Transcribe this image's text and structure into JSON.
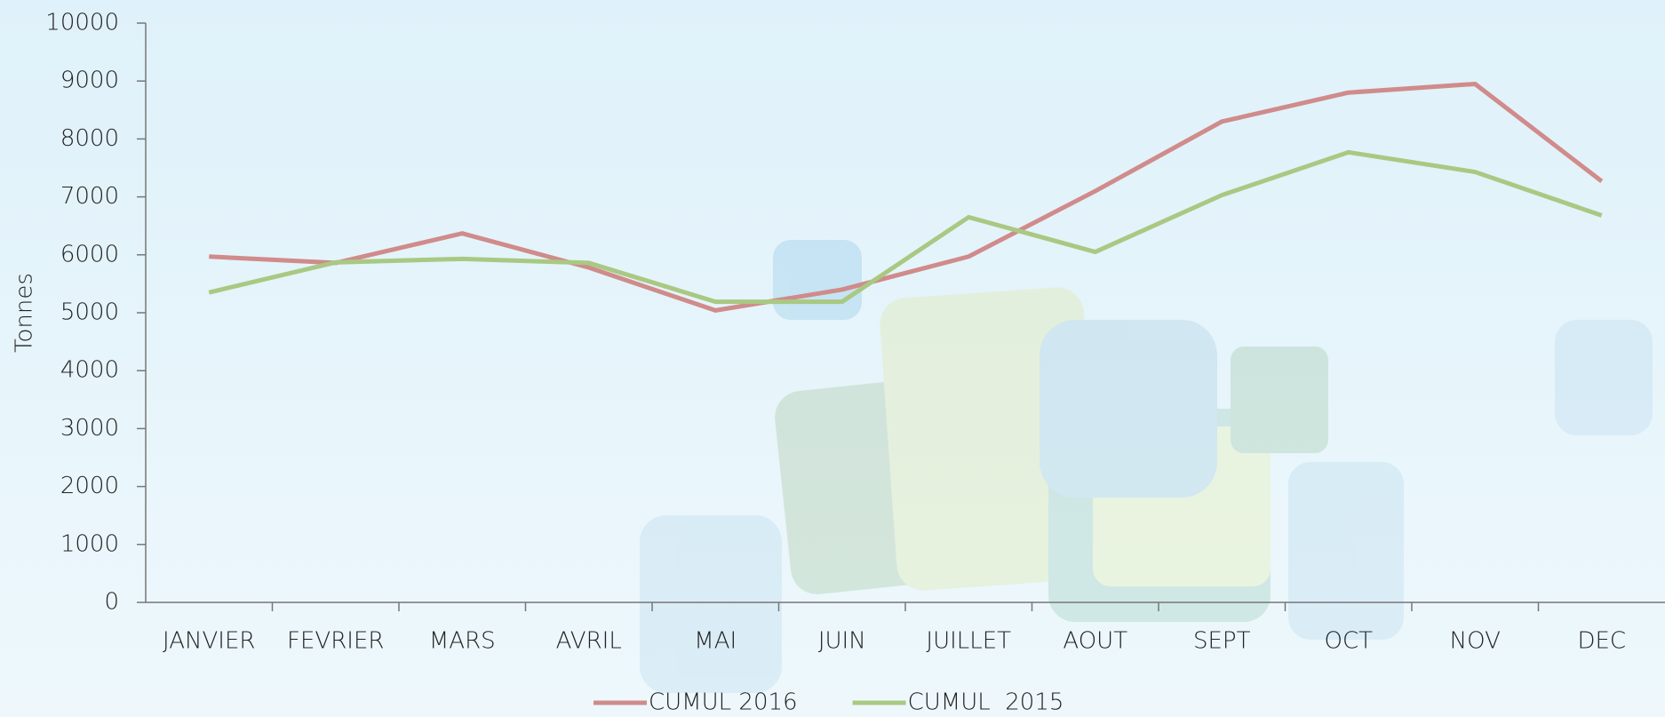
{
  "chart_data": {
    "type": "line",
    "y_label": "Tonnes",
    "categories": [
      "JANVIER",
      "FEVRIER",
      "MARS",
      "AVRIL",
      "MAI",
      "JUIN",
      "JUILLET",
      "AOUT",
      "SEPT",
      "OCT",
      "NOV",
      "DEC"
    ],
    "series": [
      {
        "name": "CUMUL 2016",
        "color": "#d08b8b",
        "values": [
          5970,
          5860,
          6370,
          5780,
          5040,
          5400,
          5970,
          7100,
          8300,
          8800,
          8950,
          7270
        ]
      },
      {
        "name": "CUMUL  2015",
        "color": "#a9c983",
        "values": [
          5350,
          5870,
          5930,
          5860,
          5190,
          5190,
          6650,
          6050,
          7030,
          7770,
          7430,
          6680
        ]
      }
    ],
    "ylim": [
      0,
      10000
    ],
    "yticks": [
      0,
      1000,
      2000,
      3000,
      4000,
      5000,
      6000,
      7000,
      8000,
      9000,
      10000
    ],
    "grid": false,
    "legend": "bottom"
  }
}
